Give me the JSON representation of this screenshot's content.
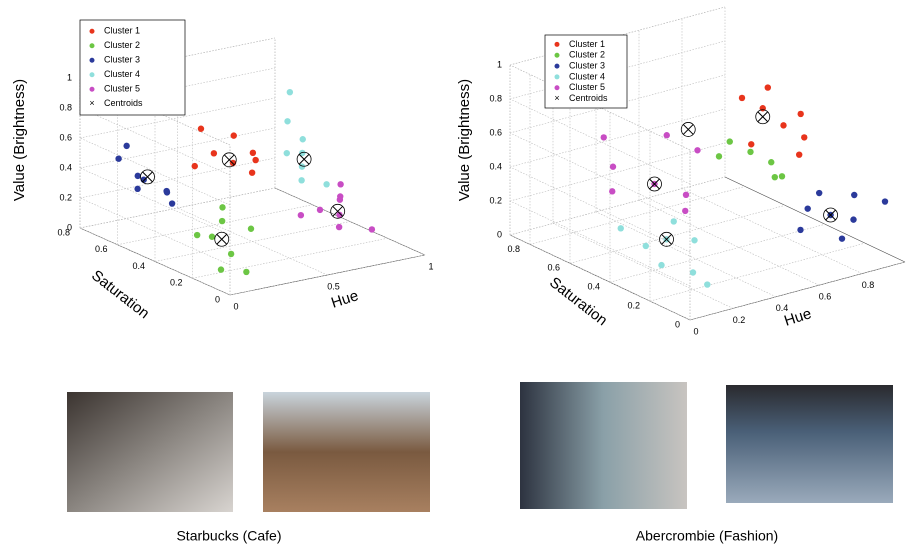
{
  "chart_data": [
    {
      "type": "scatter3d",
      "xlabel": "Hue",
      "ylabel": "Saturation",
      "zlabel": "Value (Brightness)",
      "xlim": [
        0,
        1
      ],
      "ylim": [
        0,
        0.8
      ],
      "zlim": [
        0,
        1
      ],
      "xticks": [
        0,
        0.5,
        1
      ],
      "yticks": [
        0,
        0.2,
        0.4,
        0.6,
        0.8
      ],
      "zticks": [
        0,
        0.2,
        0.4,
        0.6,
        0.8,
        1
      ],
      "grid": true,
      "legend": "upper left",
      "series": [
        {
          "name": "Cluster 1",
          "color": "#e8341c",
          "x": [
            0.4,
            0.35,
            0.45,
            0.5,
            0.3,
            0.42,
            0.55,
            0.38
          ],
          "y": [
            0.4,
            0.45,
            0.35,
            0.5,
            0.5,
            0.3,
            0.45,
            0.55
          ],
          "values": [
            0.55,
            0.6,
            0.5,
            0.65,
            0.5,
            0.62,
            0.55,
            0.7
          ]
        },
        {
          "name": "Cluster 2",
          "color": "#6cc644",
          "x": [
            0.1,
            0.15,
            0.2,
            0.05,
            0.25,
            0.12,
            0.18,
            0.3
          ],
          "y": [
            0.2,
            0.15,
            0.25,
            0.1,
            0.3,
            0.3,
            0.1,
            0.2
          ],
          "values": [
            0.25,
            0.15,
            0.3,
            0.1,
            0.35,
            0.2,
            0.05,
            0.25
          ]
        },
        {
          "name": "Cluster 3",
          "color": "#2b3a9b",
          "x": [
            0.15,
            0.2,
            0.25,
            0.3,
            0.22,
            0.28,
            0.35,
            0.18
          ],
          "y": [
            0.75,
            0.7,
            0.72,
            0.65,
            0.78,
            0.6,
            0.7,
            0.68
          ],
          "values": [
            0.45,
            0.35,
            0.3,
            0.25,
            0.5,
            0.2,
            0.2,
            0.28
          ]
        },
        {
          "name": "Cluster 4",
          "color": "#8fdfdc",
          "x": [
            0.85,
            0.9,
            0.8,
            0.95,
            0.88,
            0.98,
            0.92,
            0.82
          ],
          "y": [
            0.5,
            0.55,
            0.45,
            0.6,
            0.4,
            0.7,
            0.65,
            0.55
          ],
          "values": [
            0.35,
            0.4,
            0.3,
            0.45,
            0.28,
            0.7,
            0.55,
            0.42
          ]
        },
        {
          "name": "Cluster 5",
          "color": "#c84dc4",
          "x": [
            0.85,
            0.9,
            0.8,
            0.95,
            0.75,
            0.92,
            0.7,
            1.0
          ],
          "y": [
            0.3,
            0.35,
            0.25,
            0.4,
            0.3,
            0.2,
            0.35,
            0.45
          ],
          "values": [
            0.14,
            0.2,
            0.1,
            0.18,
            0.2,
            0.08,
            0.15,
            0.22
          ]
        },
        {
          "name": "Centroids",
          "color": "#000000",
          "marker": "x",
          "x": [
            0.4,
            0.15,
            0.25,
            0.88,
            0.86
          ],
          "y": [
            0.42,
            0.2,
            0.7,
            0.52,
            0.32
          ],
          "values": [
            0.56,
            0.22,
            0.33,
            0.38,
            0.15
          ]
        }
      ]
    },
    {
      "type": "scatter3d",
      "xlabel": "Hue",
      "ylabel": "Saturation",
      "zlabel": "Value (Brightness)",
      "xlim": [
        0,
        1
      ],
      "ylim": [
        0,
        0.9
      ],
      "zlim": [
        0,
        1
      ],
      "xticks": [
        0,
        0.2,
        0.4,
        0.6,
        0.8
      ],
      "yticks": [
        0,
        0.2,
        0.4,
        0.6,
        0.8
      ],
      "zticks": [
        0,
        0.2,
        0.4,
        0.6,
        0.8,
        1
      ],
      "grid": true,
      "legend": "upper left",
      "series": [
        {
          "name": "Cluster 1",
          "color": "#e8341c",
          "x": [
            0.9,
            0.85,
            0.95,
            0.8,
            0.98,
            0.88,
            0.75,
            0.92
          ],
          "y": [
            0.5,
            0.55,
            0.45,
            0.6,
            0.5,
            0.4,
            0.5,
            0.6
          ],
          "values": [
            0.56,
            0.65,
            0.5,
            0.7,
            0.6,
            0.45,
            0.5,
            0.72
          ]
        },
        {
          "name": "Cluster 2",
          "color": "#6cc644",
          "x": [
            0.7,
            0.65,
            0.75,
            0.72,
            0.6,
            0.8
          ],
          "y": [
            0.45,
            0.5,
            0.4,
            0.35,
            0.5,
            0.4
          ],
          "values": [
            0.5,
            0.55,
            0.45,
            0.4,
            0.48,
            0.35
          ]
        },
        {
          "name": "Cluster 3",
          "color": "#2b3a9b",
          "x": [
            0.84,
            0.9,
            0.78,
            0.95,
            0.7,
            1.0,
            0.88,
            0.8
          ],
          "y": [
            0.2,
            0.15,
            0.25,
            0.2,
            0.2,
            0.1,
            0.3,
            0.1
          ],
          "values": [
            0.22,
            0.2,
            0.25,
            0.3,
            0.18,
            0.3,
            0.28,
            0.15
          ]
        },
        {
          "name": "Cluster 4",
          "color": "#8fdfdc",
          "x": [
            0.17,
            0.1,
            0.25,
            0.2,
            0.3,
            0.05,
            0.22,
            0.12
          ],
          "y": [
            0.3,
            0.25,
            0.35,
            0.2,
            0.3,
            0.4,
            0.15,
            0.35
          ],
          "values": [
            0.25,
            0.15,
            0.3,
            0.1,
            0.2,
            0.3,
            0.05,
            0.2
          ]
        },
        {
          "name": "Cluster 5",
          "color": "#c84dc4",
          "x": [
            0.3,
            0.2,
            0.4,
            0.25,
            0.5,
            0.35,
            0.15,
            0.45
          ],
          "y": [
            0.5,
            0.6,
            0.45,
            0.7,
            0.5,
            0.4,
            0.55,
            0.6
          ],
          "values": [
            0.42,
            0.5,
            0.35,
            0.6,
            0.55,
            0.3,
            0.4,
            0.6
          ]
        },
        {
          "name": "Centroids",
          "color": "#000000",
          "marker": "x",
          "x": [
            0.85,
            0.55,
            0.84,
            0.17,
            0.3
          ],
          "y": [
            0.55,
            0.6,
            0.2,
            0.3,
            0.5
          ],
          "values": [
            0.6,
            0.6,
            0.22,
            0.25,
            0.42
          ]
        }
      ]
    }
  ],
  "captions": [
    "Starbucks (Cafe)",
    "Abercrombie (Fashion)"
  ]
}
